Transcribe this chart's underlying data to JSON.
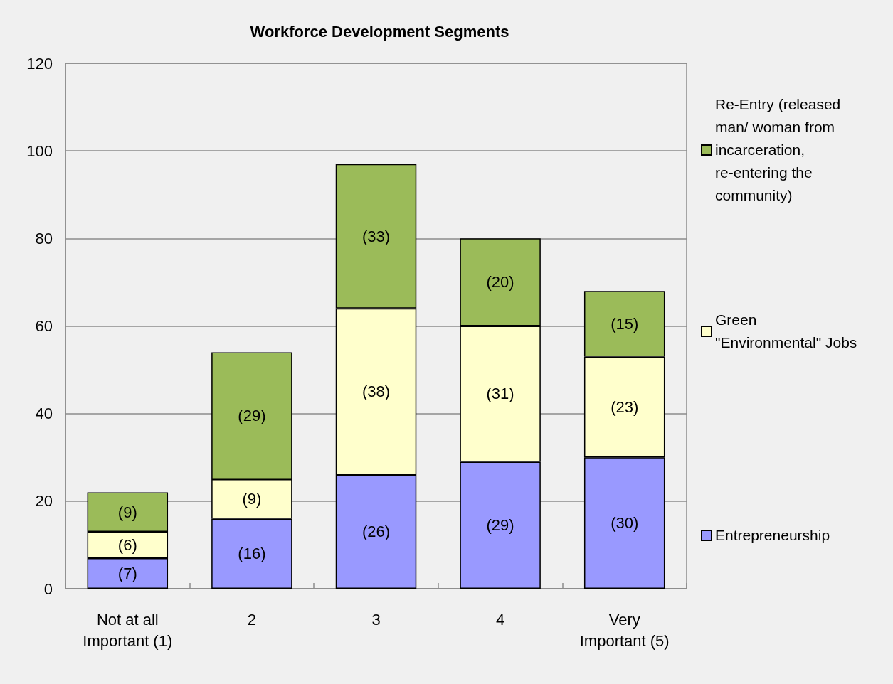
{
  "chart_data": {
    "type": "bar",
    "title": "Workforce Development Segments",
    "categories": [
      "Not at all Important (1)",
      "2",
      "3",
      "4",
      "Very Important (5)"
    ],
    "series": [
      {
        "name": "Entrepreneurship",
        "color": "#9999ff",
        "values": [
          7,
          16,
          26,
          29,
          30
        ],
        "value_labels": [
          "(7)",
          "(16)",
          "(26)",
          "(29)",
          "(30)"
        ]
      },
      {
        "name": "Green \"Environmental\" Jobs",
        "color": "#ffffcc",
        "values": [
          6,
          9,
          38,
          31,
          23
        ],
        "value_labels": [
          "(6)",
          "(9)",
          "(38)",
          "(31)",
          "(23)"
        ]
      },
      {
        "name": "Re-Entry (released man/ woman from incarceration, re-entering the community)",
        "color": "#9bbb59",
        "values": [
          9,
          29,
          33,
          20,
          15
        ],
        "value_labels": [
          "(9)",
          "(29)",
          "(33)",
          "(20)",
          "(15)"
        ]
      }
    ],
    "stacked": true,
    "ylim": [
      0,
      120
    ],
    "yticks": [
      0,
      20,
      40,
      60,
      80,
      100,
      120
    ],
    "grid": "y",
    "legend": "right"
  }
}
